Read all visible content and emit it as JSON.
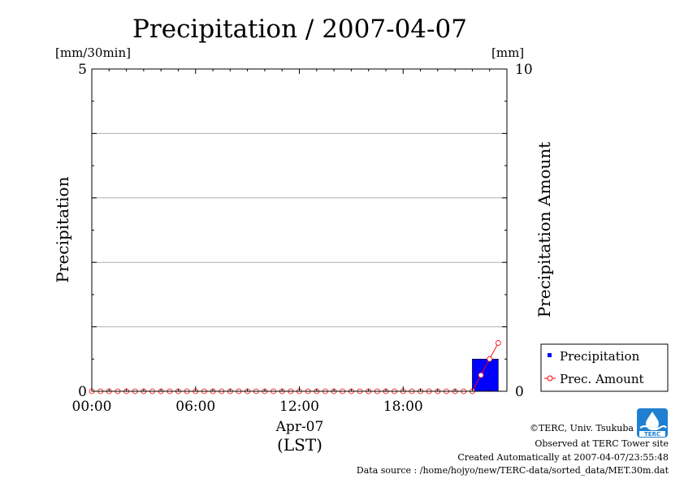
{
  "chart_data": {
    "type": "bar",
    "title": "Precipitation / 2007-04-07",
    "left_axis": {
      "label": "Precipitation",
      "unit": "[mm/30min]",
      "range": [
        0,
        5
      ],
      "ticks": [
        0,
        5
      ],
      "gridlines": [
        1,
        2,
        3,
        4
      ]
    },
    "right_axis": {
      "label": "Precipitation Amount",
      "unit": "[mm]",
      "range": [
        0,
        10
      ],
      "ticks": [
        0,
        10
      ]
    },
    "x_axis": {
      "range_hours": [
        0,
        24
      ],
      "tick_labels": [
        "00:00",
        "06:00",
        "12:00",
        "18:00"
      ],
      "tick_hours": [
        0,
        6,
        12,
        18
      ],
      "date_label": "Apr-07",
      "zone_label": "(LST)"
    },
    "legend": {
      "placement": "bottom-right-outside",
      "entries": [
        "Precipitation",
        "Prec. Amount"
      ]
    },
    "series": [
      {
        "name": "Precipitation",
        "kind": "bar",
        "color": "#0000ff",
        "bars": [
          {
            "start_hour": 22.0,
            "end_hour": 23.5,
            "value": 0.5
          }
        ]
      },
      {
        "name": "Prec. Amount",
        "kind": "line",
        "color": "#ff0000",
        "x": [
          0,
          0.5,
          1,
          1.5,
          2,
          2.5,
          3,
          3.5,
          4,
          4.5,
          5,
          5.5,
          6,
          6.5,
          7,
          7.5,
          8,
          8.5,
          9,
          9.5,
          10,
          10.5,
          11,
          11.5,
          12,
          12.5,
          13,
          13.5,
          14,
          14.5,
          15,
          15.5,
          16,
          16.5,
          17,
          17.5,
          18,
          18.5,
          19,
          19.5,
          20,
          20.5,
          21,
          21.5,
          22,
          22.5,
          23,
          23.5
        ],
        "values": [
          0,
          0,
          0,
          0,
          0,
          0,
          0,
          0,
          0,
          0,
          0,
          0,
          0,
          0,
          0,
          0,
          0,
          0,
          0,
          0,
          0,
          0,
          0,
          0,
          0,
          0,
          0,
          0,
          0,
          0,
          0,
          0,
          0,
          0,
          0,
          0,
          0,
          0,
          0,
          0,
          0,
          0,
          0,
          0,
          0,
          0.5,
          1.0,
          1.5
        ]
      }
    ]
  },
  "footer": {
    "copyright": "©TERC, Univ. Tsukuba",
    "observed": "Observed at TERC Tower site",
    "created": "Created Automatically at 2007-04-07/23:55:48",
    "source": "Data source : /home/hojyo/new/TERC-data/sorted_data/MET.30m.dat",
    "logo_text": "TERC"
  }
}
